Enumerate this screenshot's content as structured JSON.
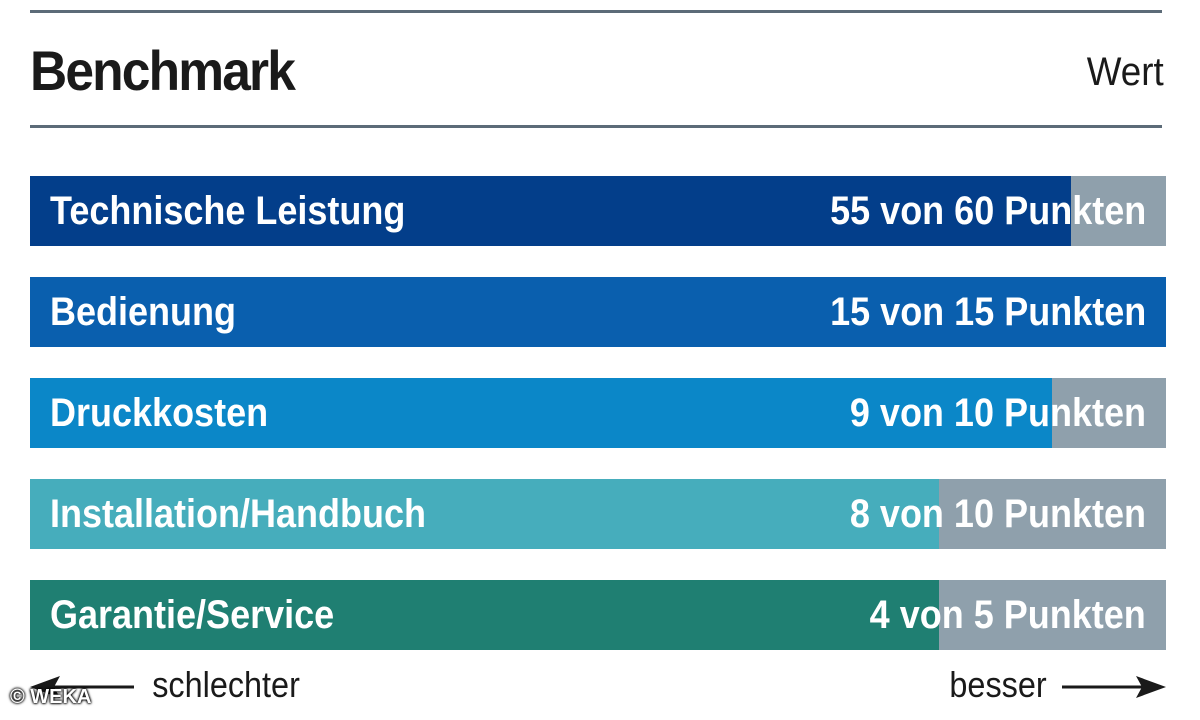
{
  "header": {
    "title": "Benchmark",
    "column_label": "Wert"
  },
  "footer": {
    "left_label": "schlechter",
    "right_label": "besser",
    "copyright": "© WEKA"
  },
  "colors": {
    "remainder": "#8fa0ac",
    "rule": "#5c6b78"
  },
  "chart_data": {
    "type": "bar",
    "orientation": "horizontal",
    "title": "Benchmark",
    "categories": [
      "Technische Leistung",
      "Bedienung",
      "Druckkosten",
      "Installation/Handbuch",
      "Garantie/Service"
    ],
    "values": [
      55,
      15,
      9,
      8,
      4
    ],
    "max_values": [
      60,
      15,
      10,
      10,
      5
    ],
    "value_labels": [
      "55 von 60 Punkten",
      "15 von 15 Punkten",
      "9 von 10 Punkten",
      "8 von 10 Punkten",
      "4 von 5 Punkten"
    ],
    "bar_colors": [
      "#033e8a",
      "#0a5fae",
      "#0b87c8",
      "#46adbc",
      "#1f7f72"
    ],
    "grid": false,
    "legend": "none"
  }
}
